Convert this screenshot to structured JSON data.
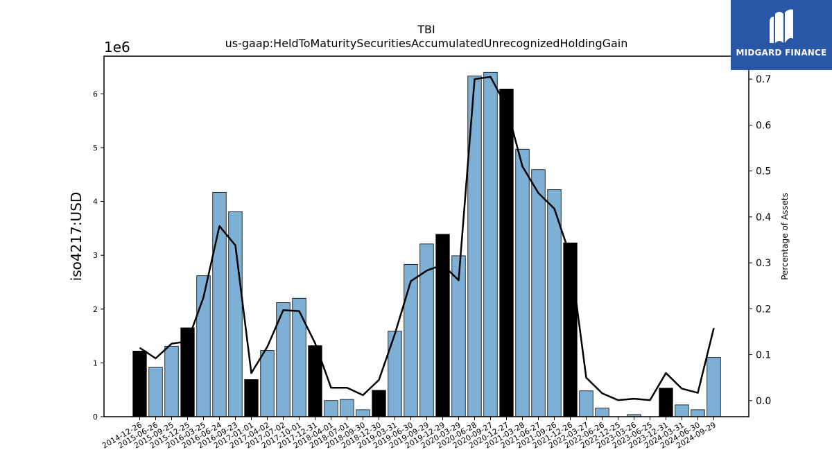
{
  "logo": {
    "text": "MIDGARD FINANCE",
    "icon": "midgard-m-logo-icon",
    "color": "#2a56a8"
  },
  "chart_data": {
    "type": "bar",
    "title": "TBI",
    "subtitle": "us-gaap:HeldToMaturitySecuritiesAccumulatedUnrecognizedHoldingGain",
    "ylabel": "iso4217:USD",
    "y2label": "Percentage of Assets",
    "y_multiplier_label": "1e6",
    "ylim": [
      0,
      6.7
    ],
    "y2lim": [
      -0.035,
      0.75
    ],
    "yticks": [
      "0",
      "1",
      "2",
      "3",
      "4",
      "5",
      "6"
    ],
    "y2ticks": [
      "0.0",
      "0.1",
      "0.2",
      "0.3",
      "0.4",
      "0.5",
      "0.6",
      "0.7"
    ],
    "grid": false,
    "categories": [
      "2014-12-26",
      "2015-06-26",
      "2015-09-25",
      "2015-12-25",
      "2016-03-25",
      "2016-06-24",
      "2016-09-23",
      "2017-01-01",
      "2017-04-02",
      "2017-07-02",
      "2017-10-01",
      "2017-12-31",
      "2018-04-01",
      "2018-07-01",
      "2018-09-30",
      "2018-12-30",
      "2019-03-31",
      "2019-06-30",
      "2019-09-29",
      "2019-12-29",
      "2020-03-29",
      "2020-06-28",
      "2020-09-27",
      "2020-12-27",
      "2021-03-28",
      "2021-06-27",
      "2021-09-26",
      "2021-12-26",
      "2022-03-27",
      "2022-06-26",
      "2022-12-25",
      "2023-03-26",
      "2023-06-25",
      "2023-12-31",
      "2024-03-31",
      "2024-06-30",
      "2024-09-29"
    ],
    "series": [
      {
        "kind": "bar",
        "values": [
          1.22,
          0.92,
          1.31,
          1.65,
          2.62,
          4.17,
          3.81,
          0.69,
          1.23,
          2.12,
          2.2,
          1.32,
          0.3,
          0.32,
          0.13,
          0.49,
          1.59,
          2.83,
          3.21,
          3.39,
          2.99,
          6.33,
          6.4,
          6.09,
          4.97,
          4.59,
          4.22,
          3.23,
          0.48,
          0.16,
          0.0,
          0.04,
          0.0,
          0.53,
          0.22,
          0.13,
          1.1
        ],
        "highlight": [
          true,
          false,
          false,
          true,
          false,
          false,
          false,
          true,
          false,
          false,
          false,
          true,
          false,
          false,
          false,
          true,
          false,
          false,
          false,
          true,
          false,
          false,
          false,
          true,
          false,
          false,
          false,
          true,
          false,
          false,
          false,
          false,
          false,
          true,
          false,
          false,
          false
        ],
        "color": "#7eb0d5",
        "highlight_color": "#000000"
      },
      {
        "kind": "line",
        "axis": "y2",
        "values": [
          0.115,
          0.092,
          0.124,
          0.129,
          0.225,
          0.38,
          0.338,
          0.06,
          0.117,
          0.197,
          0.195,
          0.125,
          0.028,
          0.028,
          0.012,
          0.045,
          0.145,
          0.26,
          0.283,
          0.296,
          0.262,
          0.7,
          0.705,
          0.64,
          0.51,
          0.452,
          0.418,
          0.315,
          0.05,
          0.016,
          0.001,
          0.004,
          0.001,
          0.06,
          0.026,
          0.017,
          0.158
        ],
        "color": "#000000"
      }
    ]
  }
}
